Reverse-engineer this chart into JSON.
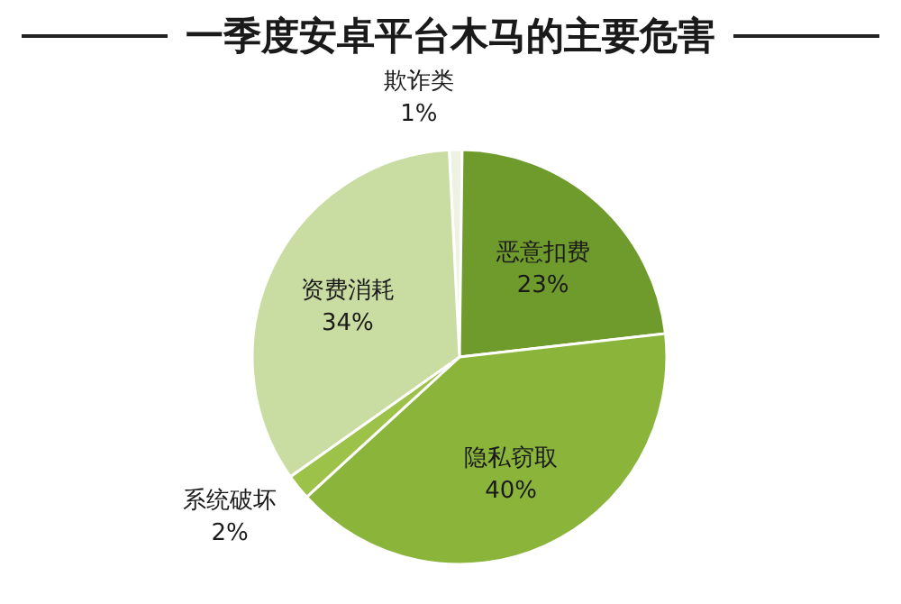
{
  "chart_data": {
    "type": "pie",
    "title": "一季度安卓平台木马的主要危害",
    "categories": [
      "欺诈类",
      "恶意扣费",
      "隐私窃取",
      "系统破坏",
      "资费消耗"
    ],
    "values": [
      1,
      23,
      40,
      2,
      34
    ],
    "value_labels": [
      "1%",
      "23%",
      "40%",
      "2%",
      "34%"
    ],
    "colors": [
      "#eef2e2",
      "#6f9a2c",
      "#8ab43a",
      "#9cc24a",
      "#c9dca2"
    ]
  }
}
